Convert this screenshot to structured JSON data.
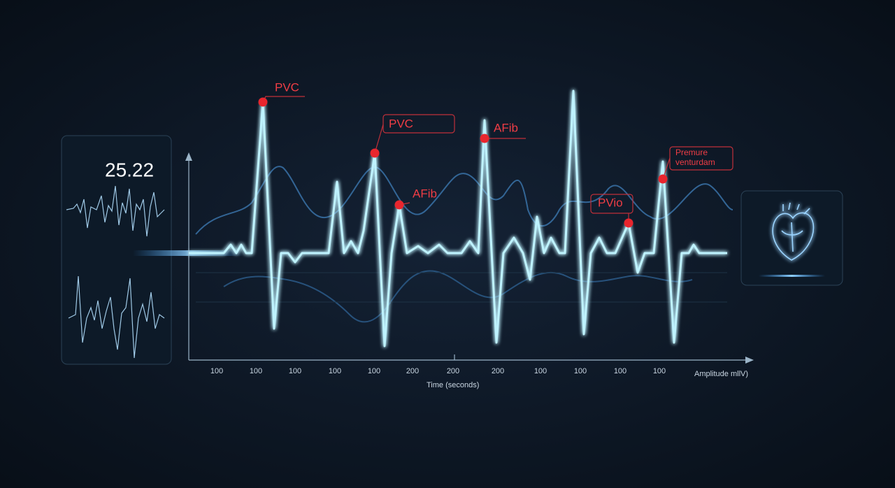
{
  "left_panel": {
    "readout": "25.22"
  },
  "chart": {
    "x_tick_labels": [
      "100",
      "100",
      "100",
      "100",
      "100",
      "200",
      "200",
      "200",
      "100",
      "100",
      "100",
      "100"
    ],
    "x_axis_label": "Time (seconds)",
    "y_axis_label": "Amplitude mllV)",
    "annotations": [
      {
        "label": [
          "PVC"
        ]
      },
      {
        "label": [
          "PVC"
        ]
      },
      {
        "label": [
          "AFib"
        ]
      },
      {
        "label": [
          "AFib"
        ]
      },
      {
        "label": [
          "PVio"
        ]
      },
      {
        "label": [
          "Premure",
          "venturdam"
        ]
      }
    ]
  }
}
